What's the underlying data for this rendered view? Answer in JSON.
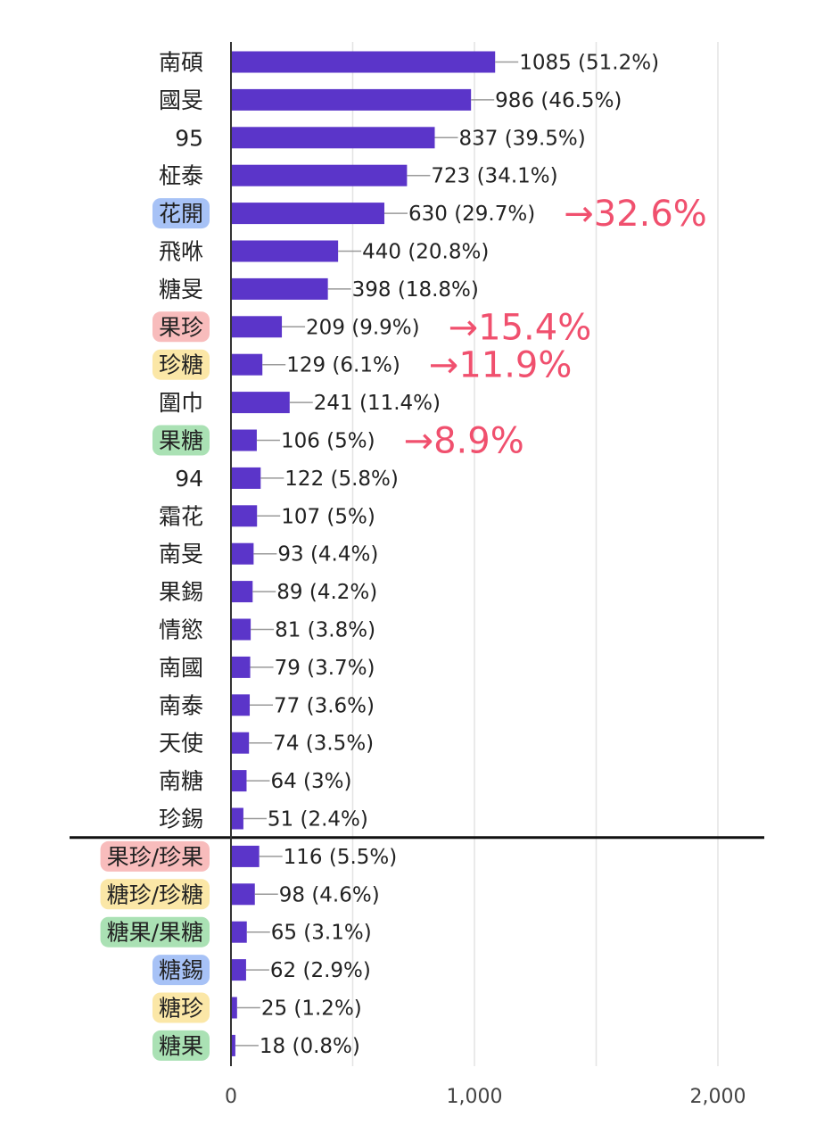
{
  "chart_data": {
    "type": "bar",
    "orientation": "horizontal",
    "categories": [
      "南碩",
      "國旻",
      "95",
      "柾泰",
      "花開",
      "飛咻",
      "糖旻",
      "果珍",
      "珍糖",
      "圍巾",
      "果糖",
      "94",
      "霜花",
      "南旻",
      "果錫",
      "情慾",
      "南國",
      "南泰",
      "天使",
      "南糖",
      "珍錫",
      "果珍/珍果",
      "糖珍/珍糖",
      "糖果/果糖",
      "糖錫",
      "糖珍",
      "糖果"
    ],
    "values": [
      1085,
      986,
      837,
      723,
      630,
      440,
      398,
      209,
      129,
      241,
      106,
      122,
      107,
      93,
      89,
      81,
      79,
      77,
      74,
      64,
      51,
      116,
      98,
      65,
      62,
      25,
      18
    ],
    "value_labels": [
      "1085 (51.2%)",
      "986 (46.5%)",
      "837 (39.5%)",
      "723 (34.1%)",
      "630 (29.7%)",
      "440 (20.8%)",
      "398 (18.8%)",
      "209 (9.9%)",
      "129 (6.1%)",
      "241 (11.4%)",
      "106 (5%)",
      "122 (5.8%)",
      "107 (5%)",
      "93 (4.4%)",
      "89 (4.2%)",
      "81 (3.8%)",
      "79 (3.7%)",
      "77 (3.6%)",
      "74 (3.5%)",
      "64 (3%)",
      "51 (2.4%)",
      "116 (5.5%)",
      "98 (4.6%)",
      "65 (3.1%)",
      "62 (2.9%)",
      "25 (1.2%)",
      "18 (0.8%)"
    ],
    "highlights": [
      {
        "index": 4,
        "color": "#4f86ee"
      },
      {
        "index": 7,
        "color": "#f27a7a"
      },
      {
        "index": 8,
        "color": "#f7cf4f"
      },
      {
        "index": 10,
        "color": "#55c46a"
      },
      {
        "index": 21,
        "color": "#f27a7a"
      },
      {
        "index": 22,
        "color": "#f7cf4f"
      },
      {
        "index": 23,
        "color": "#55c46a"
      },
      {
        "index": 24,
        "color": "#4f86ee"
      },
      {
        "index": 25,
        "color": "#f7cf4f"
      },
      {
        "index": 26,
        "color": "#55c46a"
      }
    ],
    "annotations": [
      {
        "index": 4,
        "text": "→32.6%"
      },
      {
        "index": 7,
        "text": "→15.4%"
      },
      {
        "index": 8,
        "text": "→11.9%"
      },
      {
        "index": 10,
        "text": "→8.9%"
      }
    ],
    "divider_after_index": 20,
    "xlim": [
      0,
      2000
    ],
    "xticks": [
      0,
      500,
      1000,
      1500,
      2000
    ],
    "xtick_labels": [
      "0",
      "",
      "1,000",
      "",
      "2,000"
    ],
    "grid": true,
    "colors": {
      "bar": "#5b35c9",
      "annotation": "#f0506e",
      "grid": "#e3e3e3",
      "axis": "#333333",
      "divider": "#111111"
    }
  }
}
